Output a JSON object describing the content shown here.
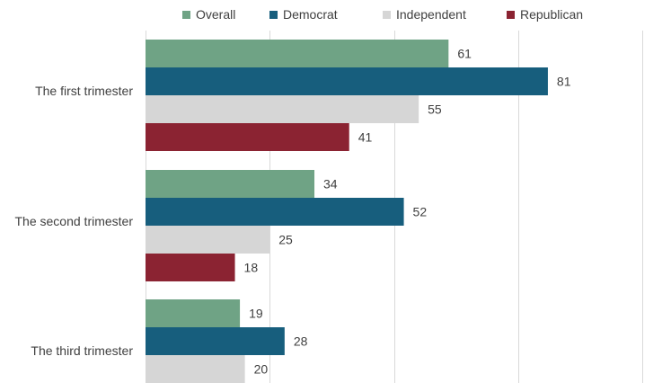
{
  "chart_data": {
    "type": "bar",
    "orientation": "horizontal",
    "title": "",
    "xlabel": "",
    "ylabel": "",
    "categories": [
      "The first trimester",
      "The second trimester",
      "The third trimester"
    ],
    "series": [
      {
        "name": "Overall",
        "color": "#6fa385",
        "values": [
          61,
          34,
          19
        ]
      },
      {
        "name": "Democrat",
        "color": "#175e7d",
        "values": [
          81,
          52,
          28
        ]
      },
      {
        "name": "Independent",
        "color": "#d6d6d6",
        "values": [
          55,
          25,
          20
        ]
      },
      {
        "name": "Republican",
        "color": "#8b2332",
        "values": [
          41,
          18,
          null
        ]
      }
    ],
    "xlim": [
      0,
      100
    ],
    "grid": true,
    "legend": "top",
    "data_labels": true
  }
}
